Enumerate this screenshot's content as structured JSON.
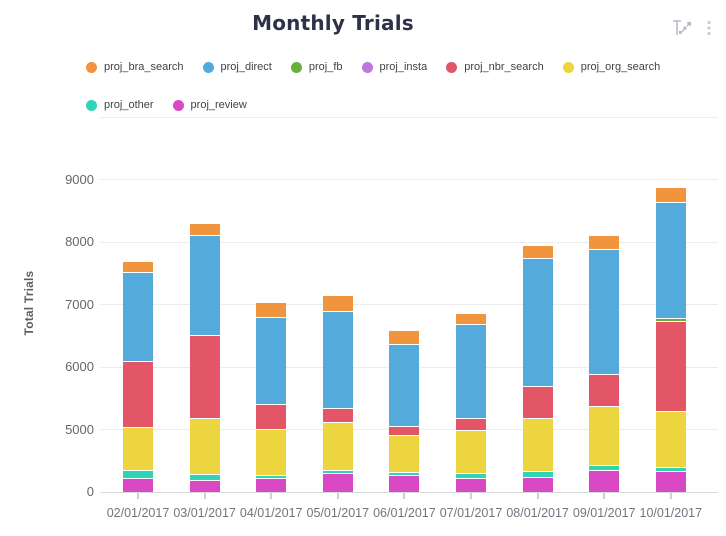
{
  "header": {
    "title": "Monthly Trials"
  },
  "chart_data": {
    "type": "bar",
    "stacked": true,
    "title": "Monthly Trials",
    "xlabel": "",
    "ylabel": "Total Trials",
    "categories": [
      "02/01/2017",
      "03/01/2017",
      "04/01/2017",
      "05/01/2017",
      "06/01/2017",
      "07/01/2017",
      "08/01/2017",
      "09/01/2017",
      "10/01/2017"
    ],
    "series": [
      {
        "name": "proj_bra_search",
        "color": "#f0943d",
        "values": [
          170,
          200,
          230,
          250,
          220,
          180,
          210,
          220,
          250
        ]
      },
      {
        "name": "proj_direct",
        "color": "#54abdb",
        "values": [
          1430,
          1600,
          1390,
          1550,
          1310,
          1500,
          2050,
          2010,
          1850
        ]
      },
      {
        "name": "proj_fb",
        "color": "#68b03a",
        "values": [
          0,
          0,
          0,
          0,
          0,
          0,
          0,
          0,
          50
        ]
      },
      {
        "name": "proj_insta",
        "color": "#bf74e0",
        "values": [
          0,
          0,
          0,
          0,
          0,
          0,
          0,
          0,
          0
        ]
      },
      {
        "name": "proj_nbr_search",
        "color": "#e25668",
        "values": [
          1050,
          1320,
          400,
          220,
          570,
          310,
          510,
          510,
          1440
        ]
      },
      {
        "name": "proj_org_search",
        "color": "#ecd53e",
        "values": [
          3370,
          3770,
          3740,
          3390,
          2930,
          3400,
          3550,
          3240,
          3340
        ]
      },
      {
        "name": "proj_other",
        "color": "#2ed4b5",
        "values": [
          610,
          540,
          210,
          270,
          240,
          400,
          480,
          460,
          320
        ]
      },
      {
        "name": "proj_review",
        "color": "#d949c3",
        "values": [
          1050,
          860,
          1050,
          1450,
          1300,
          1060,
          1140,
          1660,
          1620
        ]
      }
    ],
    "stack_order_bottom_to_top": [
      "proj_review",
      "proj_other",
      "proj_org_search",
      "proj_nbr_search",
      "proj_insta",
      "proj_fb",
      "proj_direct",
      "proj_bra_search"
    ],
    "totals": [
      7680,
      8290,
      7020,
      7130,
      6570,
      6850,
      7940,
      8100,
      8870
    ],
    "y_ticks_labeled": [
      "9000",
      "8000",
      "7000",
      "6000",
      "5000",
      "0"
    ],
    "y_gridlines": [
      10000,
      9000,
      8000,
      7000,
      6000,
      5000,
      0
    ],
    "y_axis_break": {
      "compressed_below": 5000,
      "note": "region 0-5000 is drawn compressed into a single gridline interval"
    },
    "legend_position": "top-left",
    "grid": true
  },
  "colors": {
    "title": "#2e3147",
    "axis_label": "#63676e",
    "x_axis_label": "#70767f",
    "tick": "#c5d1df",
    "gridline": "#ececef",
    "baseline": "#d9dadd",
    "icon": "#aeb6c2"
  }
}
